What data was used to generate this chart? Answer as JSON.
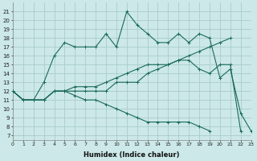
{
  "xlabel": "Humidex (Indice chaleur)",
  "bg_color": "#cce8e8",
  "grid_color": "#aacccc",
  "line_color": "#1a6b5a",
  "x_ticks": [
    0,
    1,
    2,
    3,
    4,
    5,
    6,
    7,
    8,
    9,
    10,
    11,
    12,
    13,
    14,
    15,
    16,
    17,
    18,
    19,
    20,
    21,
    22,
    23
  ],
  "y_ticks": [
    7,
    8,
    9,
    10,
    11,
    12,
    13,
    14,
    15,
    16,
    17,
    18,
    19,
    20,
    21
  ],
  "ylim": [
    6.5,
    22
  ],
  "xlim": [
    0,
    23
  ],
  "series": [
    [
      12,
      11,
      11,
      13,
      16,
      17.5,
      17,
      17,
      17,
      18.5,
      17,
      21,
      19.5,
      18.5,
      17.5,
      17.5,
      18.5,
      17.5,
      18.5,
      18,
      13.5,
      14.5,
      9.5,
      7.5
    ],
    [
      12,
      11,
      11,
      11,
      12,
      12,
      12,
      12,
      12,
      12,
      13,
      13,
      13,
      14,
      14.5,
      15,
      15.5,
      15.5,
      14.5,
      14,
      15,
      15,
      7.5,
      null
    ],
    [
      12,
      11,
      11,
      11,
      12,
      12,
      12.5,
      12.5,
      12.5,
      13,
      13.5,
      14,
      14.5,
      15,
      15,
      15,
      15.5,
      16,
      16.5,
      17,
      17.5,
      18,
      null,
      null
    ],
    [
      12,
      11,
      11,
      11,
      12,
      12,
      11.5,
      11,
      11,
      10.5,
      10,
      9.5,
      9,
      8.5,
      8.5,
      8.5,
      8.5,
      8.5,
      8,
      7.5,
      null,
      null,
      null,
      null
    ]
  ]
}
